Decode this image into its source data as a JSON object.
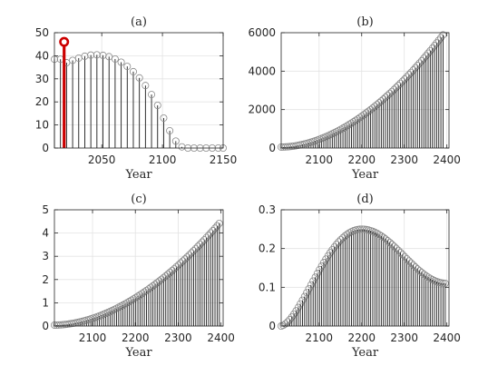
{
  "chart_data": [
    {
      "panel_title": "(a)",
      "type": "stem",
      "xlabel": "Year",
      "xlim": [
        2011,
        2150
      ],
      "ylim": [
        0,
        50
      ],
      "xticks": [
        2050,
        2100,
        2150
      ],
      "yticks": [
        0,
        10,
        20,
        30,
        40,
        50
      ],
      "grid": true,
      "colors": {
        "stem": "#1a1a1a",
        "marker": "#8a8a8a",
        "highlight": "#cc0000"
      },
      "x": [
        2011,
        2016,
        2021,
        2026,
        2031,
        2036,
        2041,
        2046,
        2051,
        2056,
        2061,
        2066,
        2071,
        2076,
        2081,
        2086,
        2091,
        2096,
        2101,
        2106,
        2111,
        2116,
        2121,
        2126,
        2131,
        2136,
        2141,
        2146,
        2150
      ],
      "y": [
        38.5,
        38.5,
        37,
        38,
        39,
        39.8,
        40.3,
        40.4,
        40.2,
        39.6,
        38.6,
        37.2,
        35.4,
        33.1,
        30.4,
        27.1,
        23.2,
        18.5,
        13,
        7.5,
        3,
        0.5,
        0,
        0,
        0,
        0,
        0,
        0,
        0
      ],
      "highlight": {
        "x": 2019,
        "y": 46
      }
    },
    {
      "panel_title": "(b)",
      "type": "stem",
      "xlabel": "Year",
      "xlim": [
        2011,
        2405
      ],
      "ylim": [
        0,
        6000
      ],
      "xticks": [
        2100,
        2200,
        2300,
        2400
      ],
      "yticks": [
        0,
        2000,
        4000,
        6000
      ],
      "grid": true,
      "colors": {
        "stem": "#1a1a1a",
        "marker": "#8a8a8a"
      },
      "curve": {
        "kind": "power",
        "x0": 2011,
        "x1": 2395,
        "y0": 50,
        "y1": 6000,
        "p": 1.85,
        "step": 5
      }
    },
    {
      "panel_title": "(c)",
      "type": "stem",
      "xlabel": "Year",
      "xlim": [
        2011,
        2405
      ],
      "ylim": [
        0,
        5
      ],
      "xticks": [
        2100,
        2200,
        2300,
        2400
      ],
      "yticks": [
        0,
        1,
        2,
        3,
        4,
        5
      ],
      "grid": true,
      "colors": {
        "stem": "#1a1a1a",
        "marker": "#8a8a8a"
      },
      "curve": {
        "kind": "power",
        "x0": 2011,
        "x1": 2400,
        "y0": 0.04,
        "y1": 4.5,
        "p": 1.85,
        "step": 5
      }
    },
    {
      "panel_title": "(d)",
      "type": "stem",
      "xlabel": "Year",
      "xlim": [
        2011,
        2405
      ],
      "ylim": [
        0,
        0.3
      ],
      "xticks": [
        2100,
        2200,
        2300,
        2400
      ],
      "yticks": [
        0,
        0.1,
        0.2,
        0.3
      ],
      "ytick_labels": [
        "0",
        "0.1",
        "0.2",
        "0.3"
      ],
      "grid": true,
      "colors": {
        "stem": "#1a1a1a",
        "marker": "#8a8a8a"
      },
      "curve": {
        "kind": "hump",
        "x0": 2011,
        "x1": 2400,
        "y0": 0.0,
        "ypeak": 0.25,
        "xpeak": 2200,
        "yend": 0.11,
        "step": 5
      }
    }
  ]
}
